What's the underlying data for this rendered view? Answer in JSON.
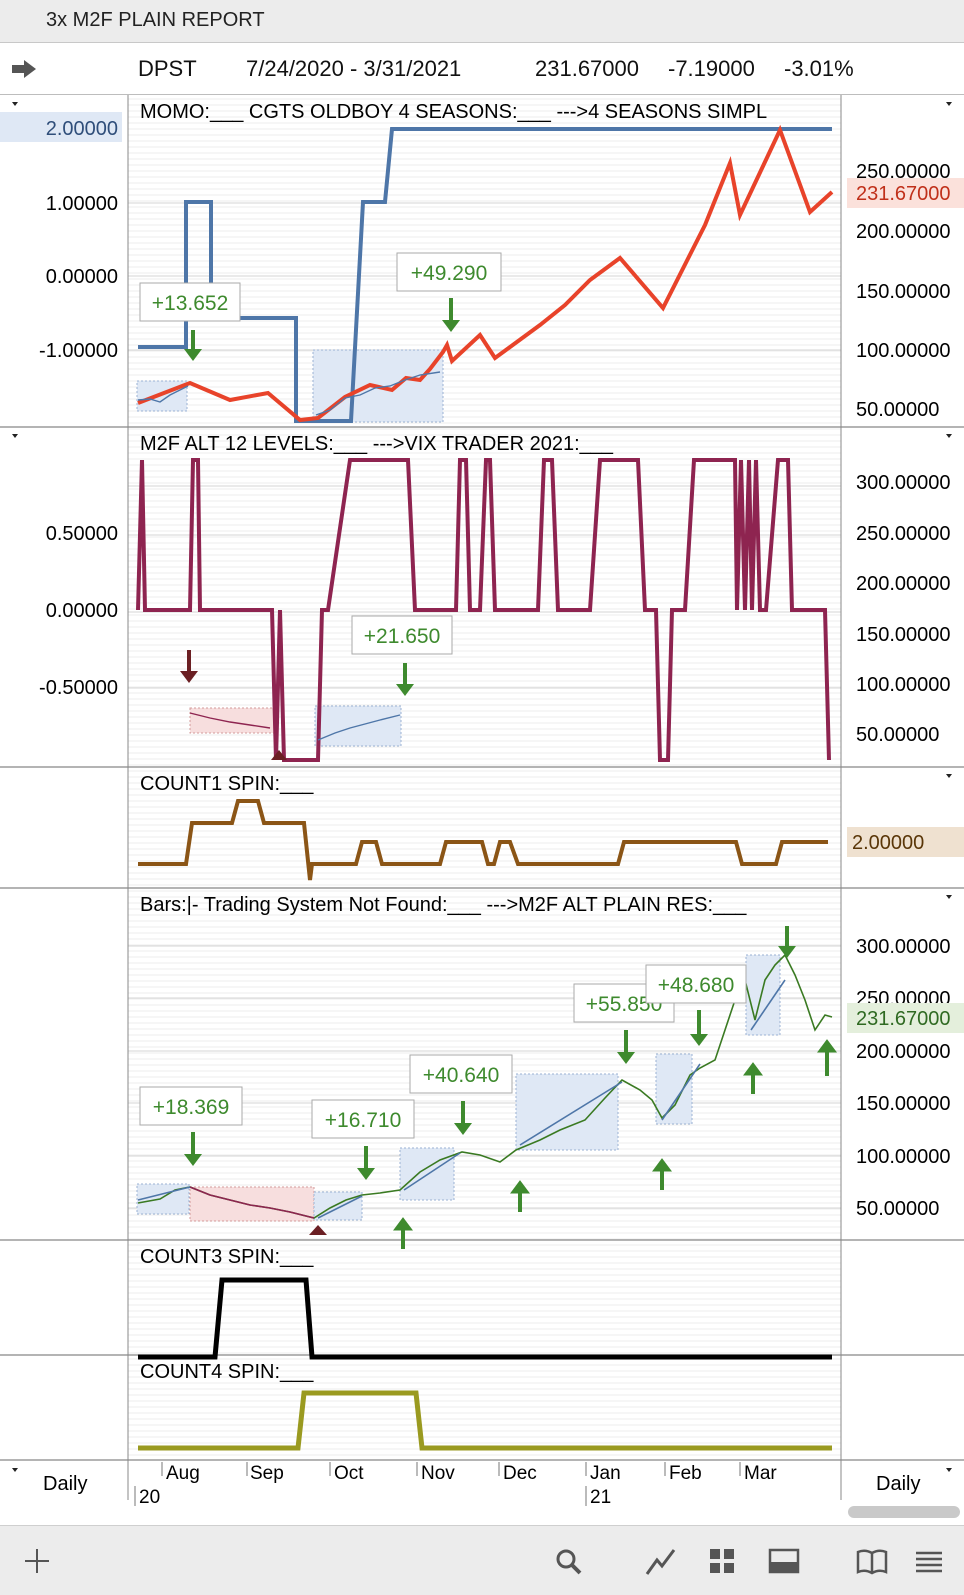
{
  "window": {
    "title": "3x M2F PLAIN REPORT"
  },
  "quote": {
    "symbol": "DPST",
    "range": "7/24/2020 - 3/31/2021",
    "last": "231.67000",
    "change": "-7.19000",
    "pct": "-3.01%"
  },
  "panes": {
    "p1": {
      "label": "MOMO:___ CGTS OLDBOY 4 SEASONS:___ --->4 SEASONS SIMPL",
      "left_badge": "2.00000",
      "right_badge": "231.67000",
      "left_ticks": [
        "1.00000",
        "0.00000",
        "-1.00000"
      ],
      "right_ticks": [
        "250.00000",
        "200.00000",
        "150.00000",
        "100.00000",
        "50.00000"
      ],
      "callouts": [
        "+13.652",
        "+49.290"
      ]
    },
    "p2": {
      "label": "M2F ALT 12 LEVELS:___ --->VIX TRADER 2021:___",
      "left_ticks": [
        "0.50000",
        "0.00000",
        "-0.50000"
      ],
      "right_ticks": [
        "300.00000",
        "250.00000",
        "200.00000",
        "150.00000",
        "100.00000",
        "50.00000"
      ],
      "callouts": [
        "+21.650"
      ]
    },
    "p3": {
      "label": "COUNT1 SPIN:___",
      "right_badge": "2.00000"
    },
    "p4": {
      "label": "Bars:|- Trading System Not Found:___ --->M2F ALT PLAIN RES:___",
      "right_badge": "231.67000",
      "right_ticks": [
        "300.00000",
        "250.00000",
        "200.00000",
        "150.00000",
        "100.00000",
        "50.00000"
      ],
      "callouts": [
        "+18.369",
        "+16.710",
        "+40.640",
        "+55.850",
        "+48.680"
      ]
    },
    "p5": {
      "label": "COUNT3 SPIN:___"
    },
    "p6": {
      "label": "COUNT4 SPIN:___"
    }
  },
  "xaxis": {
    "months": [
      "Aug",
      "Sep",
      "Oct",
      "Nov",
      "Dec",
      "Jan",
      "Feb",
      "Mar"
    ],
    "years": [
      "20",
      "21"
    ],
    "period_left": "Daily",
    "period_right": "Daily"
  },
  "colors": {
    "blue": "#4e76a8",
    "red": "#e8432a",
    "maroon": "#8e2450",
    "brown": "#8b5516",
    "black": "#000000",
    "olive": "#9a9a20",
    "green": "#3e8a2e"
  },
  "toolbar": {
    "icons": [
      "plus-icon",
      "search-icon",
      "chart-line-icon",
      "grid-icon",
      "layout-icon",
      "book-icon",
      "menu-icon"
    ]
  },
  "chart_data": [
    {
      "type": "line",
      "title": "MOMO / CGTS OLDBOY 4 SEASONS / 4 SEASONS SIMPL",
      "x": [
        "2020-07-24",
        "2020-08-10",
        "2020-09-01",
        "2020-09-25",
        "2020-10-15",
        "2020-11-01",
        "2020-11-10",
        "2020-12-01",
        "2021-01-05",
        "2021-01-25",
        "2021-02-20",
        "2021-03-10",
        "2021-03-31"
      ],
      "series": [
        {
          "name": "price",
          "values": [
            58,
            70,
            55,
            40,
            55,
            80,
            115,
            90,
            175,
            130,
            245,
            290,
            231.67
          ]
        }
      ],
      "annotations": [
        "+13.652",
        "+49.290"
      ]
    },
    {
      "type": "line",
      "title": "M2F ALT 12 LEVELS / VIX TRADER 2021",
      "ylim": [
        -0.8,
        0.8
      ],
      "annotations": [
        "+21.650"
      ]
    },
    {
      "type": "line",
      "title": "COUNT1 SPIN",
      "last": 2.0
    },
    {
      "type": "line",
      "title": "Bars / M2F ALT PLAIN RES",
      "ylim": [
        40,
        310
      ],
      "series": [
        {
          "name": "close",
          "values": [
            62,
            70,
            55,
            42,
            58,
            68,
            95,
            88,
            110,
            175,
            135,
            185,
            265,
            295,
            231.67
          ]
        }
      ],
      "annotations": [
        "+18.369",
        "+16.710",
        "+40.640",
        "+55.850",
        "+48.680"
      ]
    },
    {
      "type": "line",
      "title": "COUNT3 SPIN"
    },
    {
      "type": "line",
      "title": "COUNT4 SPIN"
    }
  ]
}
